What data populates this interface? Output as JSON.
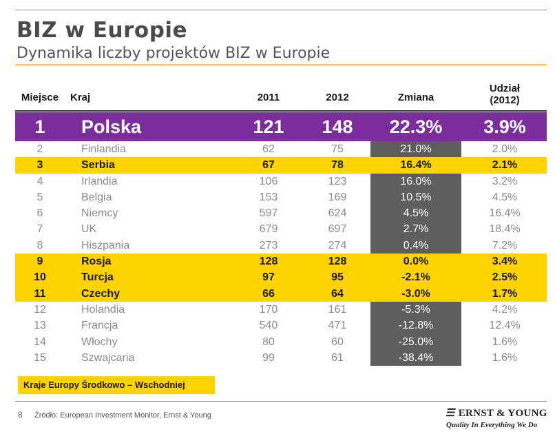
{
  "title": "BIZ w Europie",
  "subtitle": "Dynamika liczby projektów BIZ w Europie",
  "headers": {
    "rank": "Miejsce",
    "country": "Kraj",
    "y2011": "2011",
    "y2012": "2012",
    "change": "Zmiana",
    "share_line1": "Udział",
    "share_line2": "(2012)"
  },
  "top_row": {
    "rank": "1",
    "country": "Polska",
    "y2011": "121",
    "y2012": "148",
    "change": "22.3%",
    "share": "3.9%"
  },
  "rows": [
    {
      "rank": "2",
      "country": "Finlandia",
      "y2011": "62",
      "y2012": "75",
      "change": "21.0%",
      "share": "2.0%",
      "highlight": false
    },
    {
      "rank": "3",
      "country": "Serbia",
      "y2011": "67",
      "y2012": "78",
      "change": "16.4%",
      "share": "2.1%",
      "highlight": true
    },
    {
      "rank": "4",
      "country": "Irlandia",
      "y2011": "106",
      "y2012": "123",
      "change": "16.0%",
      "share": "3.2%",
      "highlight": false
    },
    {
      "rank": "5",
      "country": "Belgia",
      "y2011": "153",
      "y2012": "169",
      "change": "10.5%",
      "share": "4.5%",
      "highlight": false
    },
    {
      "rank": "6",
      "country": "Niemcy",
      "y2011": "597",
      "y2012": "624",
      "change": "4.5%",
      "share": "16.4%",
      "highlight": false
    },
    {
      "rank": "7",
      "country": "UK",
      "y2011": "679",
      "y2012": "697",
      "change": "2.7%",
      "share": "18.4%",
      "highlight": false
    },
    {
      "rank": "8",
      "country": "Hiszpania",
      "y2011": "273",
      "y2012": "274",
      "change": "0.4%",
      "share": "7.2%",
      "highlight": false
    },
    {
      "rank": "9",
      "country": "Rosja",
      "y2011": "128",
      "y2012": "128",
      "change": "0.0%",
      "share": "3.4%",
      "highlight": true
    },
    {
      "rank": "10",
      "country": "Turcja",
      "y2011": "97",
      "y2012": "95",
      "change": "-2.1%",
      "share": "2.5%",
      "highlight": true
    },
    {
      "rank": "11",
      "country": "Czechy",
      "y2011": "66",
      "y2012": "64",
      "change": "-3.0%",
      "share": "1.7%",
      "highlight": true
    },
    {
      "rank": "12",
      "country": "Holandia",
      "y2011": "170",
      "y2012": "161",
      "change": "-5.3%",
      "share": "4.2%",
      "highlight": false
    },
    {
      "rank": "13",
      "country": "Francja",
      "y2011": "540",
      "y2012": "471",
      "change": "-12.8%",
      "share": "12.4%",
      "highlight": false
    },
    {
      "rank": "14",
      "country": "Włochy",
      "y2011": "80",
      "y2012": "60",
      "change": "-25.0%",
      "share": "1.6%",
      "highlight": false
    },
    {
      "rank": "15",
      "country": "Szwajcaria",
      "y2011": "99",
      "y2012": "61",
      "change": "-38.4%",
      "share": "1.6%",
      "highlight": false
    }
  ],
  "legend": "Kraje Europy Środkowo – Wschodniej",
  "footer": {
    "page": "8",
    "source": "Źródło: European Investment Monitor, Ernst & Young",
    "logo_mark": "☰",
    "logo_name": "ERNST & YOUNG",
    "logo_tagline": "Quality In Everything We Do"
  },
  "colors": {
    "accent": "#ffd300",
    "top_row": "#7c2d9c",
    "change_column": "#5e5e5e"
  }
}
